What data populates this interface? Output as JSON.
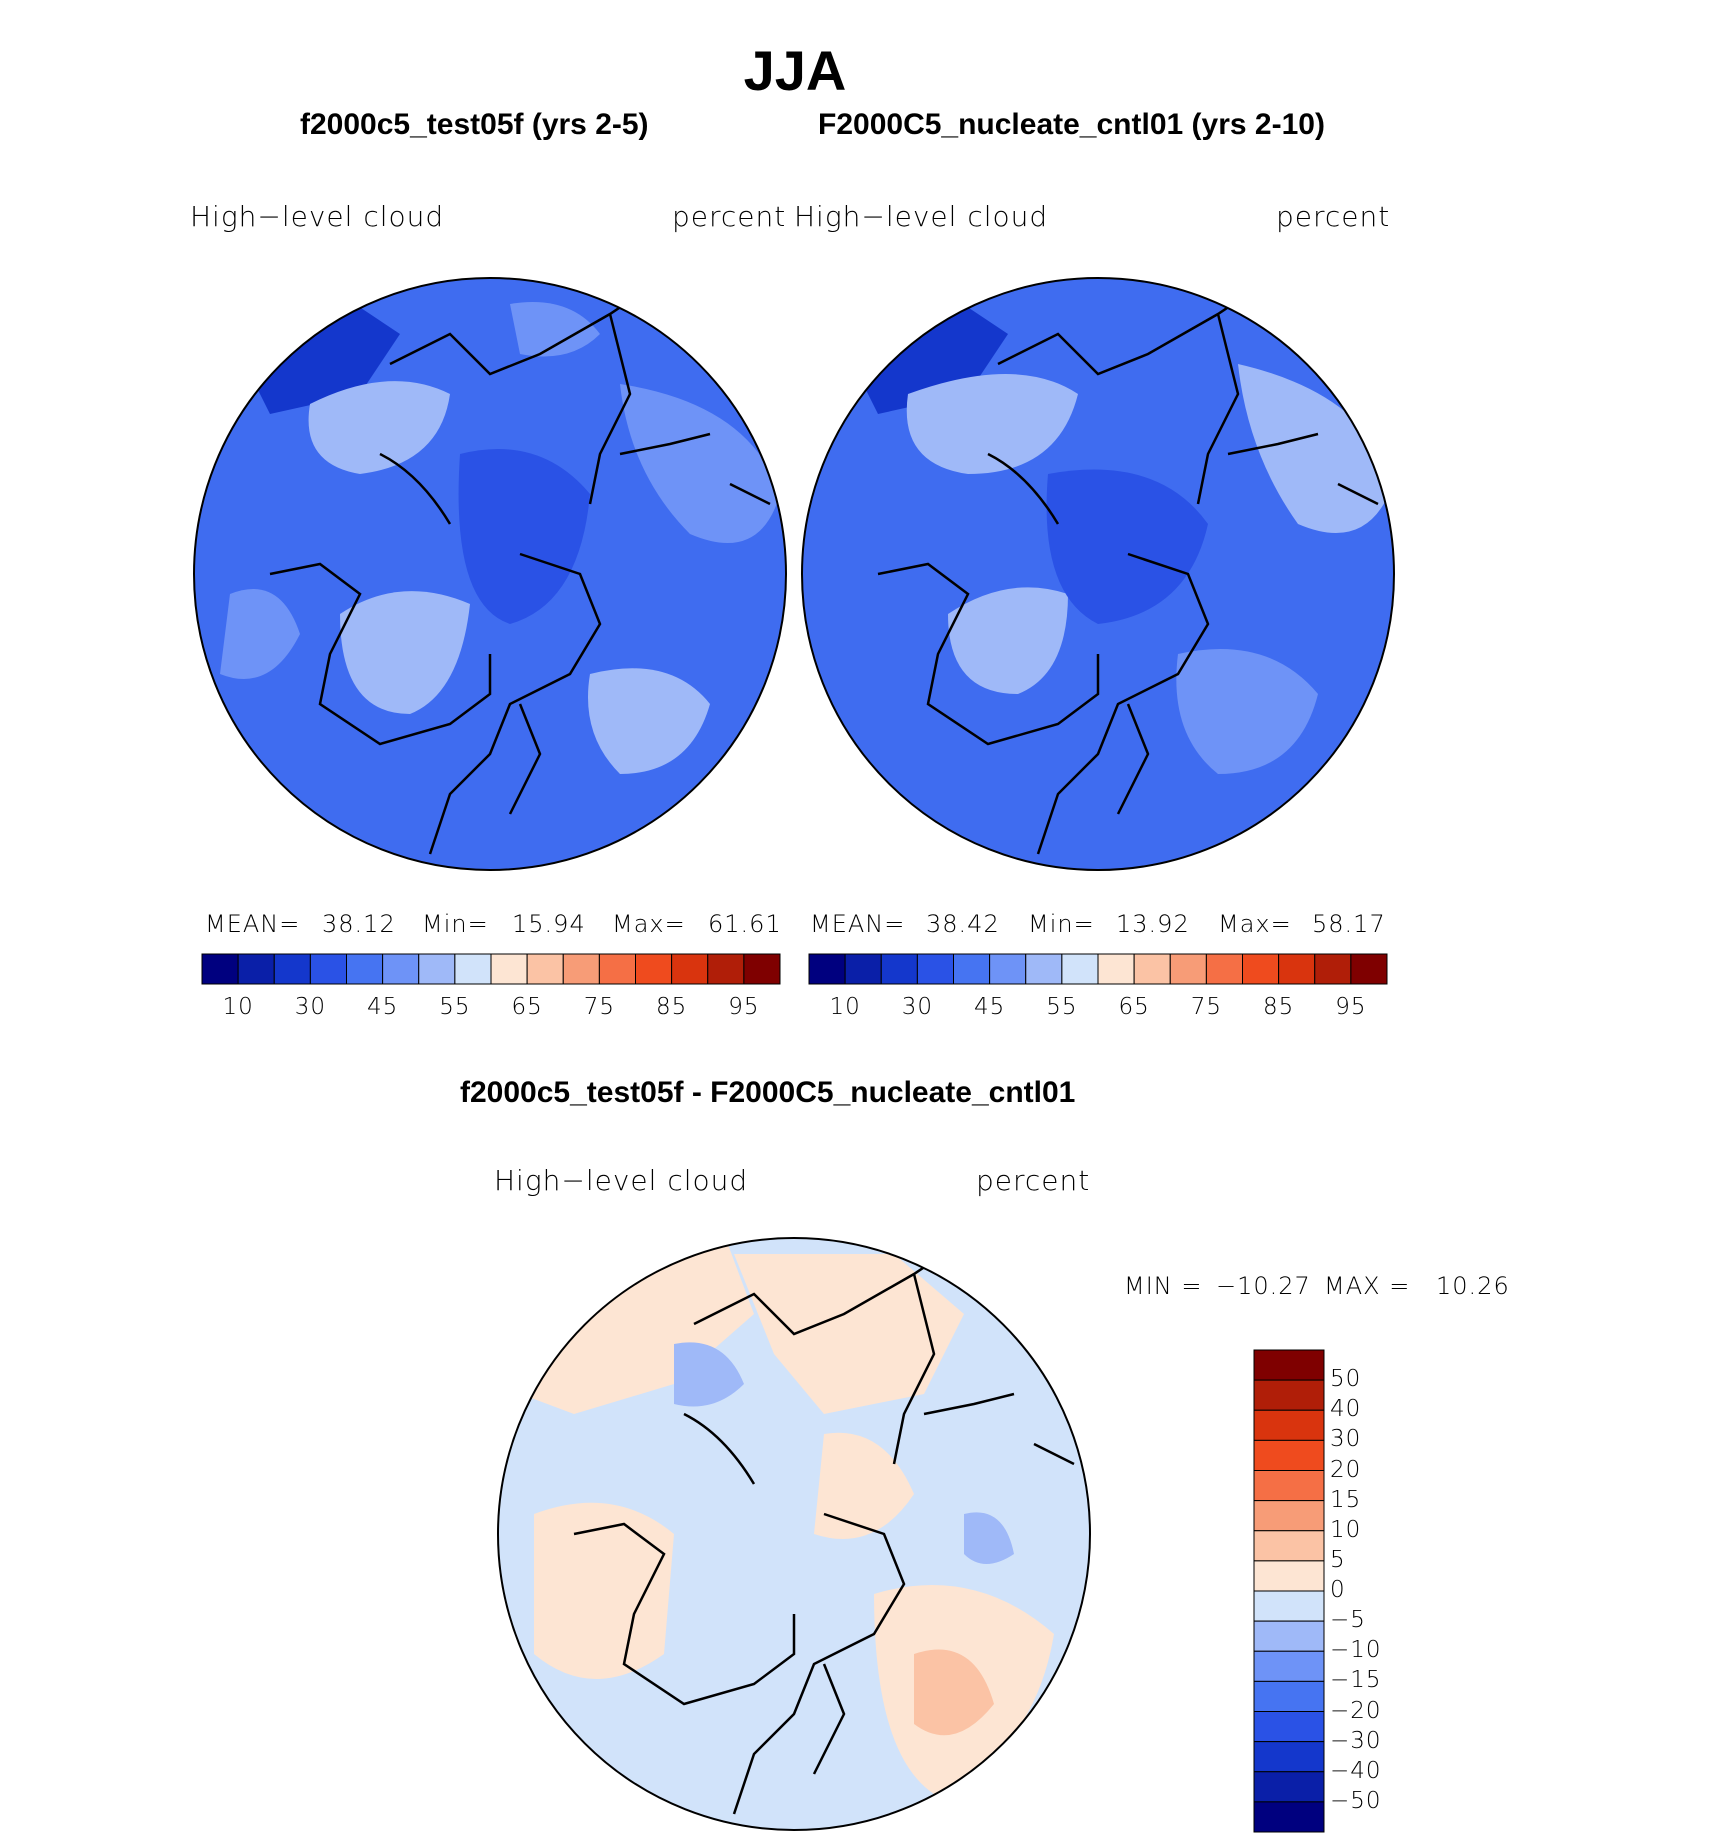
{
  "title": "JJA",
  "panels": [
    {
      "case_title": "f2000c5_test05f (yrs 2-5)",
      "variable": "High−level  cloud",
      "units": "percent",
      "stats": {
        "mean_label": "MEAN=",
        "mean": "38.12",
        "min_label": "Min=",
        "min": "15.94",
        "max_label": "Max=",
        "max": "61.61"
      }
    },
    {
      "case_title": "F2000C5_nucleate_cntl01 (yrs 2-10)",
      "variable": "High−level  cloud",
      "units": "percent",
      "stats": {
        "mean_label": "MEAN=",
        "mean": "38.42",
        "min_label": "Min=",
        "min": "13.92",
        "max_label": "Max=",
        "max": "58.17"
      }
    }
  ],
  "abs_colorbar": {
    "colors": [
      "#00007f",
      "#0a1fa8",
      "#1437cc",
      "#2a52e6",
      "#4674f2",
      "#6e93f7",
      "#9fb9f8",
      "#d1e3fa",
      "#fde5d3",
      "#fbc3a5",
      "#f79c77",
      "#f56f45",
      "#ef4b1e",
      "#d9340e",
      "#b01e08",
      "#7f0000"
    ],
    "tick_labels": [
      "10",
      "30",
      "45",
      "55",
      "65",
      "75",
      "85",
      "95"
    ]
  },
  "diff_panel": {
    "title": "f2000c5_test05f - F2000C5_nucleate_cntl01",
    "variable": "High−level  cloud",
    "units": "percent",
    "min_label": "MIN =",
    "min": "−10.27",
    "max_label": "MAX =",
    "max": "10.26"
  },
  "diff_colorbar": {
    "colors": [
      "#7f0000",
      "#b01e08",
      "#d9340e",
      "#ef4b1e",
      "#f56f45",
      "#f79c77",
      "#fbc3a5",
      "#fde5d3",
      "#d1e3fa",
      "#9fb9f8",
      "#6e93f7",
      "#4674f2",
      "#2a52e6",
      "#1437cc",
      "#0a1fa8",
      "#00007f"
    ],
    "tick_labels": [
      "50",
      "40",
      "30",
      "20",
      "15",
      "10",
      "5",
      "0",
      "−5",
      "−10",
      "−15",
      "−20",
      "−30",
      "−40",
      "−50"
    ]
  },
  "map_colors": {
    "abs_base": "#3f6cf0",
    "abs_light": "#6e93f7",
    "abs_lighter": "#9fb9f8",
    "abs_dark": "#2a52e6",
    "abs_darker": "#1437cc",
    "diff_base": "#d1e3fa",
    "diff_pos": "#fde5d3",
    "diff_pos2": "#fbc3a5",
    "diff_neg": "#9fb9f8",
    "coast": "#000000"
  }
}
